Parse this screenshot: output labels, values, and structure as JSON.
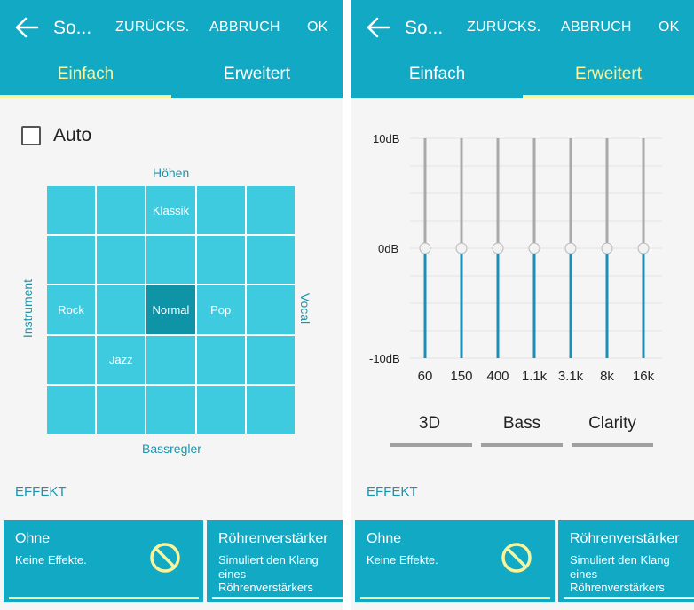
{
  "colors": {
    "accent": "#12a9c4",
    "highlight": "#fbf39a",
    "cell": "#3ecbdf",
    "cell_active": "#0e94a6",
    "label": "#1796ae"
  },
  "header": {
    "back_icon": "arrow-left-icon",
    "title": "So...",
    "reset_label": "ZURÜCKS.",
    "cancel_label": "ABBRUCH",
    "ok_label": "OK"
  },
  "tabs": [
    {
      "label": "Einfach"
    },
    {
      "label": "Erweitert"
    }
  ],
  "basic": {
    "auto_label": "Auto",
    "auto_checked": false,
    "axis_top": "Höhen",
    "axis_bottom": "Bassregler",
    "axis_left": "Instrument",
    "axis_right": "Vocal",
    "presets": {
      "top": "Klassik",
      "left": "Rock",
      "center": "Normal",
      "right": "Pop",
      "lower_left": "Jazz"
    },
    "selected_preset": "Normal"
  },
  "advanced": {
    "eq_max_label": "10dB",
    "eq_mid_label": "0dB",
    "eq_min_label": "-10dB",
    "bands": [
      {
        "freq": "60",
        "gain_db": 0
      },
      {
        "freq": "150",
        "gain_db": 0
      },
      {
        "freq": "400",
        "gain_db": 0
      },
      {
        "freq": "1.1k",
        "gain_db": 0
      },
      {
        "freq": "3.1k",
        "gain_db": 0
      },
      {
        "freq": "8k",
        "gain_db": 0
      },
      {
        "freq": "16k",
        "gain_db": 0
      }
    ],
    "effects": [
      {
        "label": "3D",
        "level": 0
      },
      {
        "label": "Bass",
        "level": 0
      },
      {
        "label": "Clarity",
        "level": 0
      }
    ]
  },
  "effekt": {
    "section_label": "EFFEKT",
    "cards": [
      {
        "title": "Ohne",
        "desc": "Keine Effekte.",
        "icon": "no-effect-icon",
        "selected": true
      },
      {
        "title": "Röhrenverstärker",
        "desc_lines": [
          "Simuliert den Klang",
          "eines",
          "Röhrenverstärkers"
        ]
      }
    ]
  }
}
